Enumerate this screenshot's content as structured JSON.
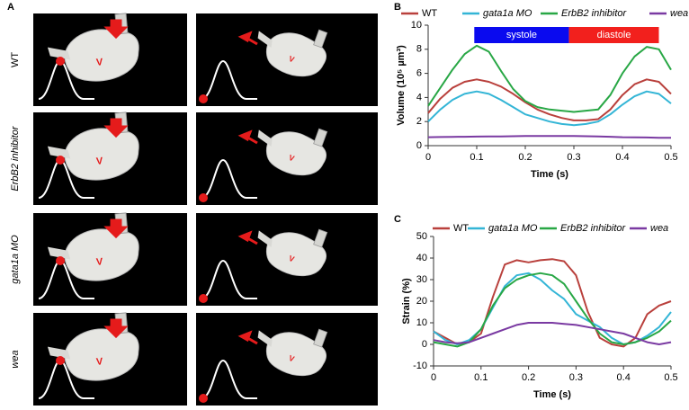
{
  "panel_a": {
    "label": "A",
    "ventricle_label": "V",
    "rows": [
      {
        "label": "WT"
      },
      {
        "label": "ErbB2 inhibitor"
      },
      {
        "label": "gata1a MO"
      },
      {
        "label": "wea"
      }
    ]
  },
  "chart_data": [
    {
      "type": "line",
      "label": "B",
      "xlabel": "Time (s)",
      "ylabel": "Volume (10⁵ µm³)",
      "x": [
        0,
        0.025,
        0.05,
        0.075,
        0.1,
        0.125,
        0.15,
        0.175,
        0.2,
        0.225,
        0.25,
        0.275,
        0.3,
        0.325,
        0.35,
        0.375,
        0.4,
        0.425,
        0.45,
        0.475,
        0.5
      ],
      "xlim": [
        0,
        0.5
      ],
      "ylim": [
        0,
        10
      ],
      "xticks": [
        0,
        0.1,
        0.2,
        0.3,
        0.4,
        0.5
      ],
      "yticks": [
        0,
        2,
        4,
        6,
        8,
        10
      ],
      "annotations": [
        {
          "text": "systole",
          "x": [
            0.095,
            0.29
          ],
          "color": "#0a0aef"
        },
        {
          "text": "diastole",
          "x": [
            0.29,
            0.475
          ],
          "color": "#f2201d"
        }
      ],
      "series": [
        {
          "name": "WT",
          "color": "#b9403c",
          "values": [
            2.7,
            3.9,
            4.8,
            5.3,
            5.5,
            5.3,
            4.9,
            4.3,
            3.6,
            3.0,
            2.6,
            2.3,
            2.1,
            2.1,
            2.2,
            3.0,
            4.2,
            5.1,
            5.5,
            5.3,
            4.3
          ]
        },
        {
          "name": "gata1a MO",
          "color": "#33b5d6",
          "values": [
            2.0,
            3.0,
            3.8,
            4.3,
            4.5,
            4.3,
            3.8,
            3.2,
            2.6,
            2.3,
            2.0,
            1.8,
            1.7,
            1.8,
            2.0,
            2.6,
            3.4,
            4.1,
            4.5,
            4.3,
            3.5
          ]
        },
        {
          "name": "ErbB2 inhibitor",
          "color": "#28a745",
          "values": [
            3.3,
            4.8,
            6.3,
            7.6,
            8.3,
            7.8,
            6.2,
            4.7,
            3.7,
            3.2,
            3.0,
            2.9,
            2.8,
            2.9,
            3.0,
            4.2,
            6.0,
            7.4,
            8.2,
            8.0,
            6.3
          ]
        },
        {
          "name": "wea",
          "color": "#7a3aa2",
          "values": [
            0.7,
            0.72,
            0.73,
            0.74,
            0.75,
            0.76,
            0.77,
            0.78,
            0.8,
            0.8,
            0.8,
            0.8,
            0.8,
            0.78,
            0.76,
            0.74,
            0.7,
            0.69,
            0.68,
            0.66,
            0.65
          ]
        }
      ]
    },
    {
      "type": "line",
      "label": "C",
      "xlabel": "Time (s)",
      "ylabel": "Strain (%)",
      "x": [
        0,
        0.025,
        0.05,
        0.075,
        0.1,
        0.125,
        0.15,
        0.175,
        0.2,
        0.225,
        0.25,
        0.275,
        0.3,
        0.325,
        0.35,
        0.375,
        0.4,
        0.425,
        0.45,
        0.475,
        0.5
      ],
      "xlim": [
        0,
        0.5
      ],
      "ylim": [
        -10,
        50
      ],
      "xticks": [
        0,
        0.1,
        0.2,
        0.3,
        0.4,
        0.5
      ],
      "yticks": [
        -10,
        0,
        10,
        20,
        30,
        40,
        50
      ],
      "series": [
        {
          "name": "WT",
          "color": "#b9403c",
          "values": [
            6,
            3,
            0,
            1,
            5,
            22,
            37,
            39,
            38,
            39,
            39.5,
            38.5,
            32,
            15,
            3,
            0,
            -1,
            3,
            14,
            18,
            20
          ]
        },
        {
          "name": "gata1a MO",
          "color": "#33b5d6",
          "values": [
            6,
            2,
            0,
            2,
            7,
            17,
            27,
            32,
            33,
            30,
            25,
            21,
            14,
            11,
            8,
            3,
            0,
            1,
            4,
            8,
            15
          ]
        },
        {
          "name": "ErbB2 inhibitor",
          "color": "#28a745",
          "values": [
            1,
            0,
            -1,
            1,
            7,
            18,
            26,
            30,
            32,
            33,
            32,
            28,
            20,
            12,
            5,
            1,
            0,
            1,
            3,
            6,
            11
          ]
        },
        {
          "name": "wea",
          "color": "#7a3aa2",
          "values": [
            2,
            1,
            0.5,
            1,
            3,
            5,
            7,
            9,
            10,
            10,
            10,
            9.5,
            9,
            8,
            7,
            6,
            5,
            3,
            1,
            0,
            1
          ]
        }
      ]
    }
  ]
}
